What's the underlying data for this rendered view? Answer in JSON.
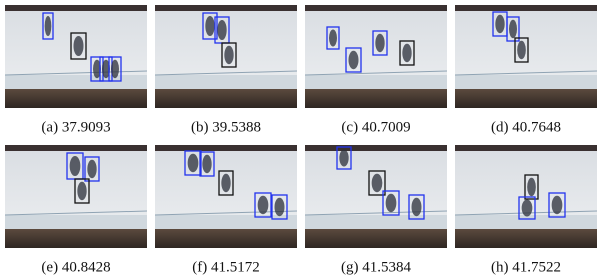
{
  "panels": [
    {
      "caption": "(a) 37.9093"
    },
    {
      "caption": "(b) 39.5388"
    },
    {
      "caption": "(c) 40.7009"
    },
    {
      "caption": "(d) 40.7648"
    },
    {
      "caption": "(e) 40.8428"
    },
    {
      "caption": "(f) 41.5172"
    },
    {
      "caption": "(g) 41.5384"
    },
    {
      "caption": "(h) 41.7522"
    }
  ]
}
